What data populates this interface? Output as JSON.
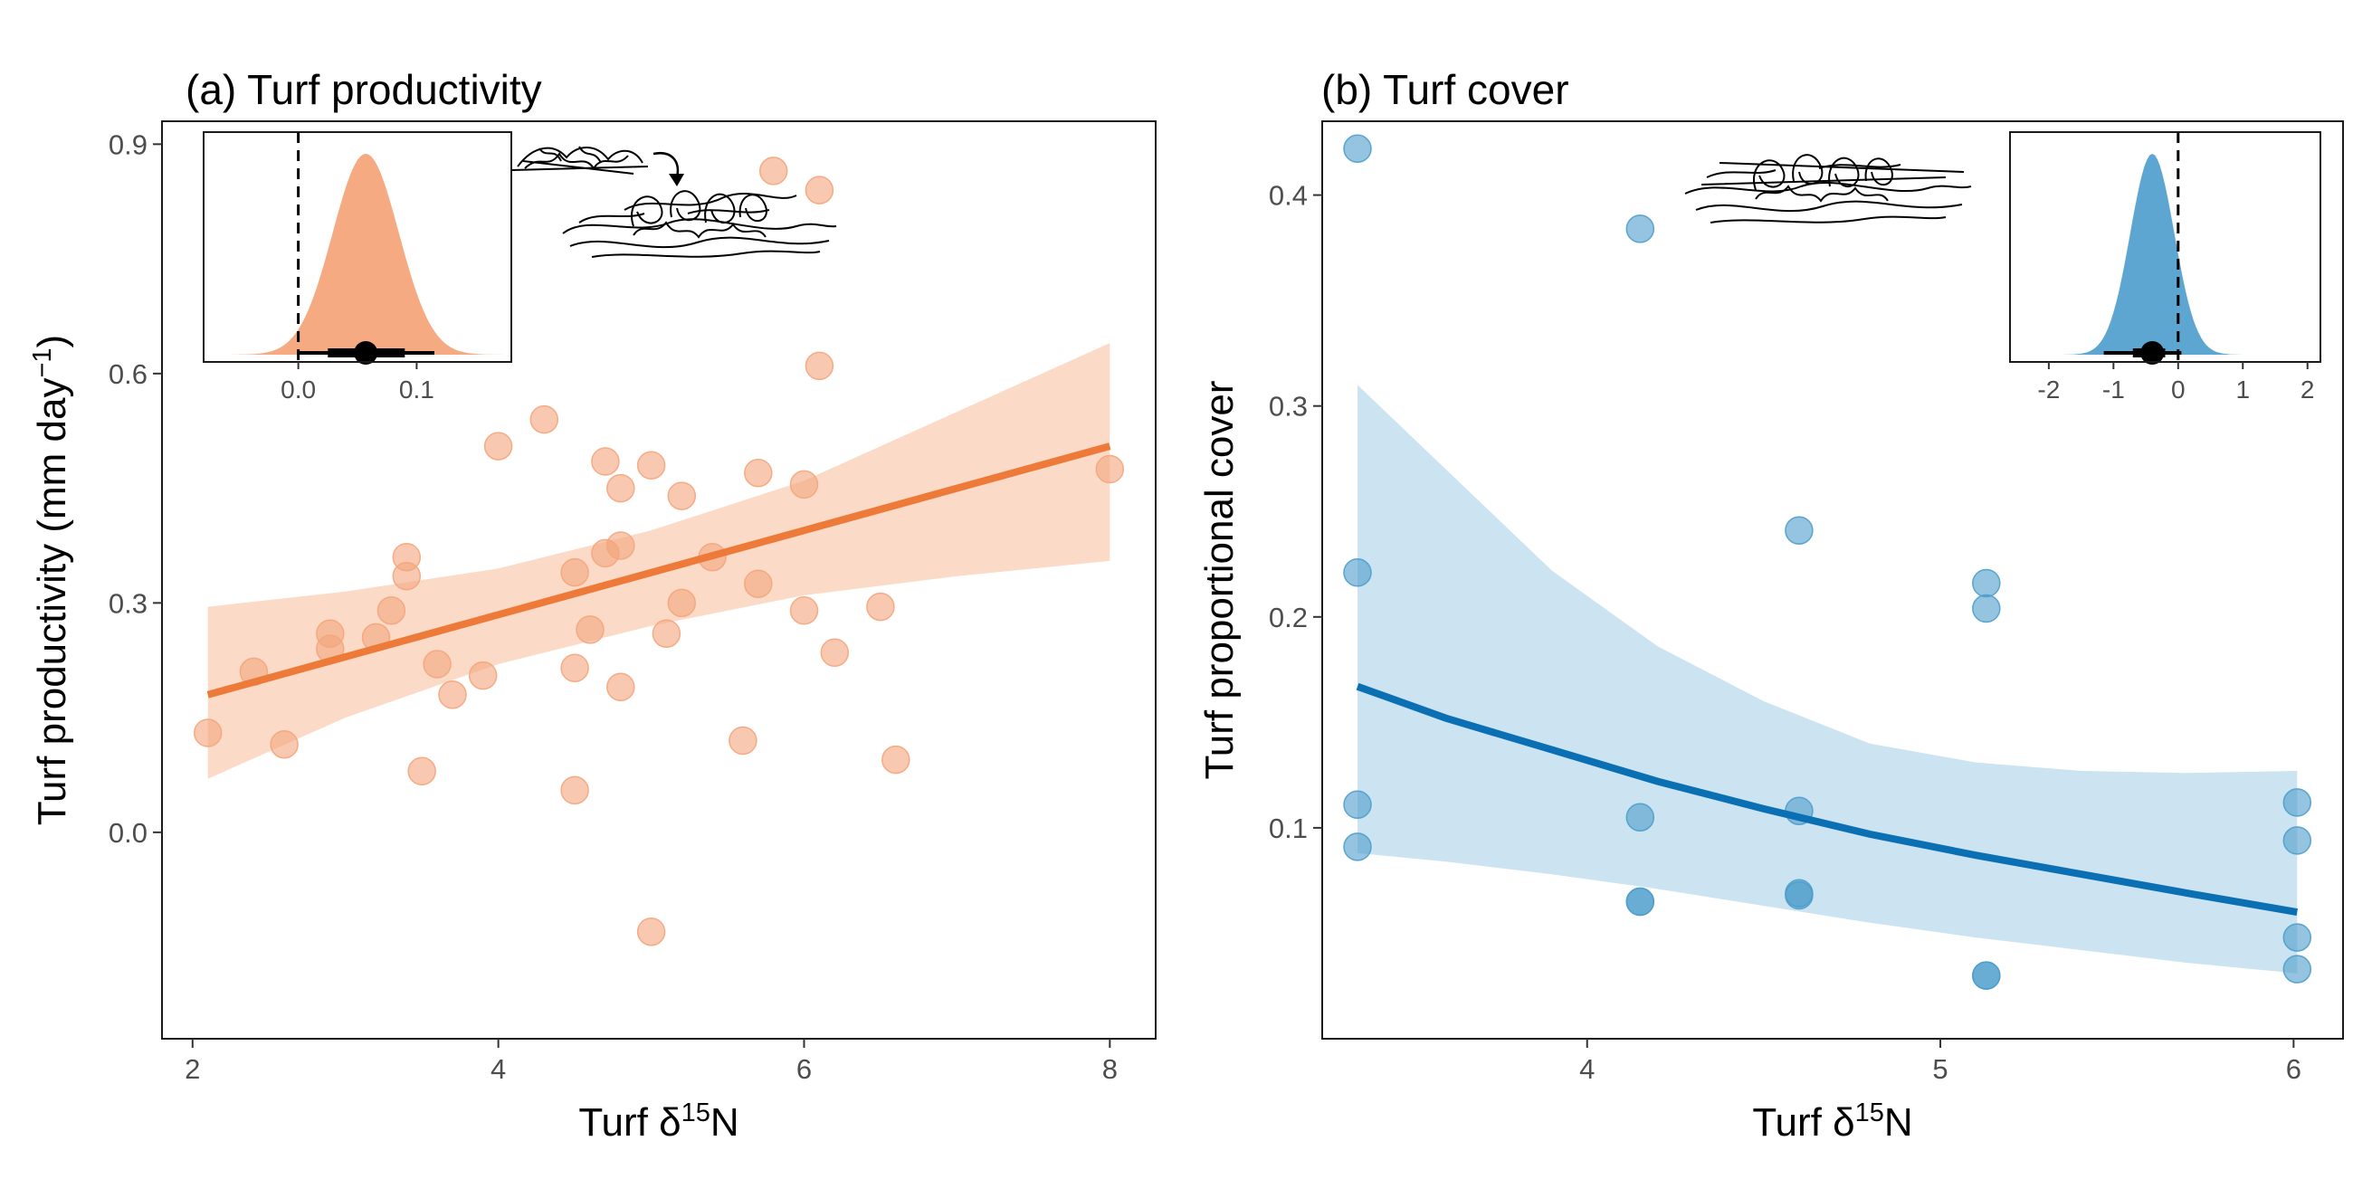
{
  "colors": {
    "orange": "#EE7A3A",
    "orange_point": "#F4A57B",
    "orange_band": "#FBD9C5",
    "orange_density": "#F5AA82",
    "blue": "#0A6FB3",
    "blue_point": "#4C9DCC",
    "blue_band": "#C9E2F0",
    "blue_density": "#5EA6D2"
  },
  "chart_data": [
    {
      "panel": "a",
      "type": "scatter",
      "title": "(a) Turf productivity",
      "xlabel": "Turf δ15N",
      "ylabel": "Turf productivity (mm day-1)",
      "xlim": [
        1.8,
        8.3
      ],
      "ylim": [
        -0.27,
        0.93
      ],
      "xticks": [
        2,
        4,
        6,
        8
      ],
      "yticks": [
        0.0,
        0.3,
        0.6,
        0.9
      ],
      "xtick_labels": [
        "2",
        "4",
        "6",
        "8"
      ],
      "ytick_labels": [
        "0.0",
        "0.3",
        "0.6",
        "0.9"
      ],
      "grid": false,
      "points": [
        [
          2.1,
          0.13
        ],
        [
          2.4,
          0.21
        ],
        [
          2.6,
          0.115
        ],
        [
          2.9,
          0.26
        ],
        [
          2.9,
          0.24
        ],
        [
          3.2,
          0.255
        ],
        [
          3.3,
          0.29
        ],
        [
          3.4,
          0.36
        ],
        [
          3.4,
          0.335
        ],
        [
          3.5,
          0.08
        ],
        [
          3.6,
          0.22
        ],
        [
          3.7,
          0.18
        ],
        [
          3.9,
          0.205
        ],
        [
          4.0,
          0.505
        ],
        [
          4.3,
          0.54
        ],
        [
          4.5,
          0.34
        ],
        [
          4.5,
          0.215
        ],
        [
          4.5,
          0.055
        ],
        [
          4.6,
          0.265
        ],
        [
          4.7,
          0.485
        ],
        [
          4.7,
          0.365
        ],
        [
          4.8,
          0.375
        ],
        [
          4.8,
          0.45
        ],
        [
          4.8,
          0.19
        ],
        [
          5.0,
          0.48
        ],
        [
          5.0,
          -0.13
        ],
        [
          5.1,
          0.26
        ],
        [
          5.2,
          0.44
        ],
        [
          5.2,
          0.3
        ],
        [
          5.4,
          0.36
        ],
        [
          5.6,
          0.12
        ],
        [
          5.7,
          0.47
        ],
        [
          5.7,
          0.325
        ],
        [
          5.8,
          0.865
        ],
        [
          6.0,
          0.455
        ],
        [
          6.0,
          0.29
        ],
        [
          6.1,
          0.84
        ],
        [
          6.1,
          0.61
        ],
        [
          6.2,
          0.235
        ],
        [
          6.5,
          0.295
        ],
        [
          6.6,
          0.095
        ],
        [
          8.0,
          0.475
        ]
      ],
      "fit": {
        "x": [
          2.1,
          8.0
        ],
        "y": [
          0.18,
          0.505
        ]
      },
      "ribbon": {
        "x": [
          2.1,
          3.0,
          4.0,
          5.0,
          6.0,
          7.0,
          8.0
        ],
        "lower": [
          0.07,
          0.15,
          0.22,
          0.27,
          0.31,
          0.335,
          0.355
        ],
        "upper": [
          0.295,
          0.315,
          0.345,
          0.395,
          0.46,
          0.55,
          0.64
        ]
      },
      "inset": {
        "xlim": [
          -0.08,
          0.18
        ],
        "xticks": [
          0.0,
          0.1
        ],
        "xtick_labels": [
          "0.0",
          "0.1"
        ],
        "zero_line": 0,
        "density": {
          "mean": 0.057,
          "sd": 0.028
        },
        "point_estimate": 0.057,
        "interval_thick": [
          0.025,
          0.09
        ],
        "interval_thin": [
          0.0,
          0.115
        ]
      }
    },
    {
      "panel": "b",
      "type": "scatter",
      "title": "(b) Turf cover",
      "xlabel": "Turf δ15N",
      "ylabel": "Turf proportional cover",
      "xlim": [
        3.25,
        6.14
      ],
      "ylim": [
        0.0,
        0.435
      ],
      "xticks": [
        4,
        5,
        6
      ],
      "yticks": [
        0.1,
        0.2,
        0.3,
        0.4
      ],
      "xtick_labels": [
        "4",
        "5",
        "6"
      ],
      "ytick_labels": [
        "0.1",
        "0.2",
        "0.3",
        "0.4"
      ],
      "grid": false,
      "points": [
        [
          3.35,
          0.422
        ],
        [
          3.35,
          0.221
        ],
        [
          3.35,
          0.111
        ],
        [
          3.35,
          0.091
        ],
        [
          4.15,
          0.384
        ],
        [
          4.15,
          0.105
        ],
        [
          4.15,
          0.065
        ],
        [
          4.15,
          0.065
        ],
        [
          4.6,
          0.241
        ],
        [
          4.6,
          0.108
        ],
        [
          4.6,
          0.069
        ],
        [
          4.6,
          0.068
        ],
        [
          5.13,
          0.216
        ],
        [
          5.13,
          0.204
        ],
        [
          5.13,
          0.03
        ],
        [
          5.13,
          0.03
        ],
        [
          6.01,
          0.112
        ],
        [
          6.01,
          0.094
        ],
        [
          6.01,
          0.048
        ],
        [
          6.01,
          0.033
        ]
      ],
      "fit": {
        "x": [
          3.35,
          3.6,
          3.9,
          4.2,
          4.5,
          4.8,
          5.1,
          5.4,
          5.7,
          6.01
        ],
        "y": [
          0.167,
          0.152,
          0.137,
          0.122,
          0.109,
          0.097,
          0.087,
          0.078,
          0.069,
          0.06
        ]
      },
      "ribbon": {
        "x": [
          3.35,
          3.6,
          3.9,
          4.2,
          4.5,
          4.8,
          5.1,
          5.4,
          5.7,
          6.01
        ],
        "lower": [
          0.088,
          0.084,
          0.078,
          0.071,
          0.063,
          0.055,
          0.048,
          0.042,
          0.036,
          0.031
        ],
        "upper": [
          0.31,
          0.27,
          0.222,
          0.186,
          0.16,
          0.14,
          0.131,
          0.127,
          0.126,
          0.127
        ]
      },
      "inset": {
        "xlim": [
          -2.6,
          2.2
        ],
        "xticks": [
          -2,
          -1,
          0,
          1,
          2
        ],
        "xtick_labels": [
          "-2",
          "-1",
          "0",
          "1",
          "2"
        ],
        "zero_line": 0,
        "density": {
          "mean": -0.4,
          "sd": 0.34
        },
        "point_estimate": -0.4,
        "interval_thick": [
          -0.7,
          -0.2
        ],
        "interval_thin": [
          -1.15,
          0.05
        ]
      }
    }
  ]
}
